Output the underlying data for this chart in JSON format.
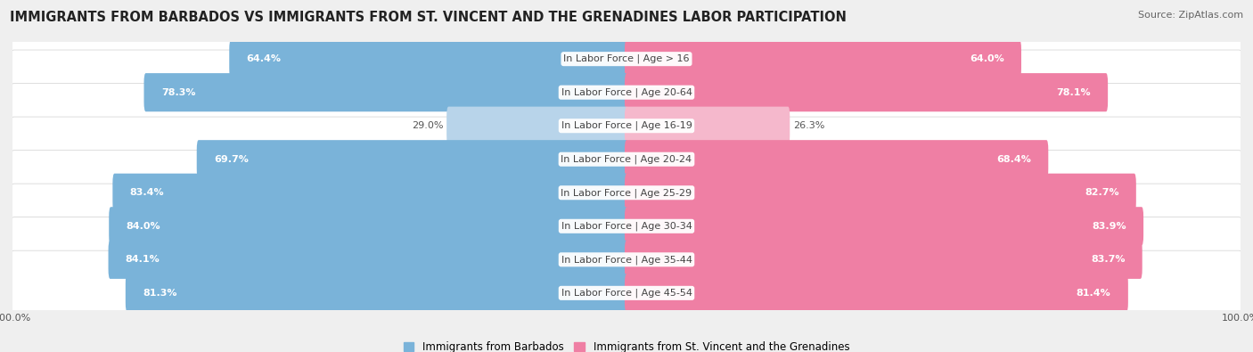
{
  "title": "IMMIGRANTS FROM BARBADOS VS IMMIGRANTS FROM ST. VINCENT AND THE GRENADINES LABOR PARTICIPATION",
  "source": "Source: ZipAtlas.com",
  "categories": [
    "In Labor Force | Age > 16",
    "In Labor Force | Age 20-64",
    "In Labor Force | Age 16-19",
    "In Labor Force | Age 20-24",
    "In Labor Force | Age 25-29",
    "In Labor Force | Age 30-34",
    "In Labor Force | Age 35-44",
    "In Labor Force | Age 45-54"
  ],
  "barbados_values": [
    64.4,
    78.3,
    29.0,
    69.7,
    83.4,
    84.0,
    84.1,
    81.3
  ],
  "stvincent_values": [
    64.0,
    78.1,
    26.3,
    68.4,
    82.7,
    83.9,
    83.7,
    81.4
  ],
  "barbados_color": "#7ab3d9",
  "barbados_color_light": "#b8d4ea",
  "stvincent_color": "#ef7fa4",
  "stvincent_color_light": "#f5b8cc",
  "max_value": 100.0,
  "background_color": "#efefef",
  "row_bg_color": "#ffffff",
  "label_fontsize": 8.0,
  "value_fontsize": 8.0,
  "title_fontsize": 10.5,
  "source_fontsize": 8.0,
  "legend_fontsize": 8.5,
  "tick_fontsize": 8.0
}
